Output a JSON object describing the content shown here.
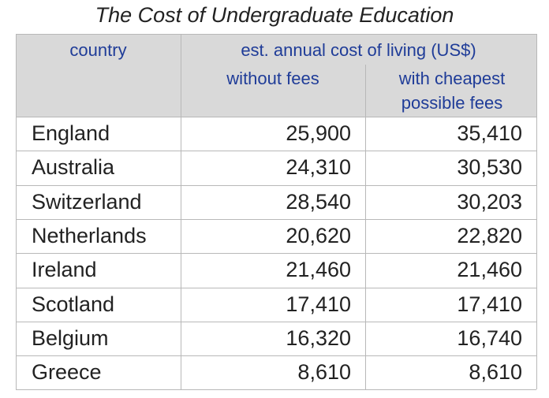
{
  "title": "The Cost of Undergraduate Education",
  "table": {
    "header": {
      "country": "country",
      "group": "est. annual cost of living (US$)",
      "col1": "without fees",
      "col2": "with cheapest possible fees"
    },
    "rows": [
      [
        "England",
        "25,900",
        "35,410"
      ],
      [
        "Australia",
        "24,310",
        "30,530"
      ],
      [
        "Switzerland",
        "28,540",
        "30,203"
      ],
      [
        "Netherlands",
        "20,620",
        "22,820"
      ],
      [
        "Ireland",
        "21,460",
        "21,460"
      ],
      [
        "Scotland",
        "17,410",
        "17,410"
      ],
      [
        "Belgium",
        "16,320",
        "16,740"
      ],
      [
        "Greece",
        "8,610",
        "8,610"
      ]
    ]
  }
}
